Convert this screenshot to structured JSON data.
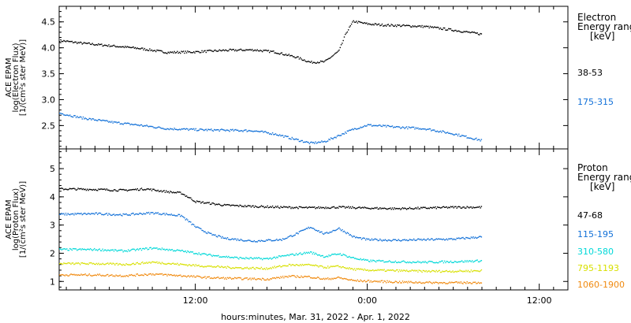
{
  "xlabel": "hours:minutes, Mar. 31, 2022 - Apr. 1, 2022",
  "x_ticks": [
    {
      "label": "12:00",
      "hour": 12
    },
    {
      "label": "0:00",
      "hour": 24
    },
    {
      "label": "12:00",
      "hour": 36
    }
  ],
  "chart_data": [
    {
      "type": "scatter",
      "title": "",
      "ylabel": [
        "ACE EPAM",
        "log(Electron Flux)",
        "[1/(cm²s ster MeV)]"
      ],
      "ylim": [
        2.05,
        4.8
      ],
      "y_ticks": [
        "2.5",
        "3.0",
        "3.5",
        "4.0",
        "4.5"
      ],
      "xlim_hours": [
        2.5,
        38
      ],
      "legend": {
        "title_lines": [
          "Electron",
          "Energy range"
        ],
        "unit": "[keV]"
      },
      "series": [
        {
          "name": "38-53",
          "color": "#000000",
          "points": [
            [
              2.5,
              4.15
            ],
            [
              4.0,
              4.1
            ],
            [
              6.0,
              4.05
            ],
            [
              8.0,
              4.0
            ],
            [
              10.0,
              3.92
            ],
            [
              12.0,
              3.93
            ],
            [
              14.0,
              3.96
            ],
            [
              16.0,
              3.97
            ],
            [
              17.5,
              3.93
            ],
            [
              19.0,
              3.83
            ],
            [
              20.0,
              3.73
            ],
            [
              21.0,
              3.74
            ],
            [
              22.0,
              3.95
            ],
            [
              22.5,
              4.3
            ],
            [
              23.0,
              4.52
            ],
            [
              24.0,
              4.47
            ],
            [
              25.0,
              4.45
            ],
            [
              26.0,
              4.44
            ],
            [
              28.0,
              4.42
            ],
            [
              30.0,
              4.35
            ],
            [
              32.0,
              4.27
            ]
          ]
        },
        {
          "name": "175-315",
          "color": "#1170d8",
          "points": [
            [
              2.5,
              2.75
            ],
            [
              4.0,
              2.66
            ],
            [
              6.0,
              2.58
            ],
            [
              8.0,
              2.52
            ],
            [
              10.0,
              2.45
            ],
            [
              12.0,
              2.43
            ],
            [
              14.0,
              2.42
            ],
            [
              16.0,
              2.41
            ],
            [
              17.5,
              2.35
            ],
            [
              19.0,
              2.24
            ],
            [
              20.0,
              2.17
            ],
            [
              21.0,
              2.2
            ],
            [
              22.0,
              2.32
            ],
            [
              23.0,
              2.44
            ],
            [
              24.0,
              2.52
            ],
            [
              25.0,
              2.5
            ],
            [
              26.0,
              2.48
            ],
            [
              28.0,
              2.45
            ],
            [
              30.0,
              2.35
            ],
            [
              32.0,
              2.22
            ]
          ]
        }
      ]
    },
    {
      "type": "scatter",
      "title": "",
      "ylabel": [
        "ACE EPAM",
        "log(Proton Flux)",
        "[1/(cm²s ster MeV)]"
      ],
      "ylim": [
        0.7,
        5.7
      ],
      "y_ticks": [
        "1",
        "2",
        "3",
        "4",
        "5"
      ],
      "xlim_hours": [
        2.5,
        38
      ],
      "legend": {
        "title_lines": [
          "Proton",
          "Energy range"
        ],
        "unit": "[keV]"
      },
      "series": [
        {
          "name": "47-68",
          "color": "#000000",
          "points": [
            [
              2.5,
              4.3
            ],
            [
              5.0,
              4.28
            ],
            [
              7.0,
              4.25
            ],
            [
              8.5,
              4.3
            ],
            [
              10.0,
              4.2
            ],
            [
              11.0,
              4.15
            ],
            [
              12.0,
              3.85
            ],
            [
              14.0,
              3.72
            ],
            [
              16.0,
              3.68
            ],
            [
              18.0,
              3.65
            ],
            [
              20.0,
              3.63
            ],
            [
              22.0,
              3.65
            ],
            [
              24.0,
              3.62
            ],
            [
              26.0,
              3.6
            ],
            [
              28.0,
              3.62
            ],
            [
              30.0,
              3.65
            ],
            [
              32.0,
              3.65
            ]
          ]
        },
        {
          "name": "115-195",
          "color": "#1170d8",
          "points": [
            [
              2.5,
              3.4
            ],
            [
              5.0,
              3.42
            ],
            [
              7.0,
              3.38
            ],
            [
              9.0,
              3.45
            ],
            [
              11.0,
              3.35
            ],
            [
              12.0,
              2.95
            ],
            [
              13.0,
              2.7
            ],
            [
              14.0,
              2.55
            ],
            [
              16.0,
              2.45
            ],
            [
              18.0,
              2.5
            ],
            [
              19.0,
              2.7
            ],
            [
              20.0,
              2.95
            ],
            [
              21.0,
              2.7
            ],
            [
              22.0,
              2.9
            ],
            [
              23.0,
              2.6
            ],
            [
              24.0,
              2.5
            ],
            [
              26.0,
              2.48
            ],
            [
              28.0,
              2.5
            ],
            [
              30.0,
              2.52
            ],
            [
              32.0,
              2.6
            ]
          ]
        },
        {
          "name": "310-580",
          "color": "#00d8d8",
          "points": [
            [
              2.5,
              2.15
            ],
            [
              5.0,
              2.15
            ],
            [
              7.0,
              2.1
            ],
            [
              9.0,
              2.2
            ],
            [
              11.0,
              2.1
            ],
            [
              13.0,
              1.95
            ],
            [
              15.0,
              1.85
            ],
            [
              17.0,
              1.82
            ],
            [
              18.5,
              1.95
            ],
            [
              20.0,
              2.05
            ],
            [
              21.0,
              1.9
            ],
            [
              22.0,
              2.0
            ],
            [
              23.0,
              1.85
            ],
            [
              24.0,
              1.75
            ],
            [
              26.0,
              1.72
            ],
            [
              28.0,
              1.7
            ],
            [
              30.0,
              1.72
            ],
            [
              32.0,
              1.75
            ]
          ]
        },
        {
          "name": "795-1193",
          "color": "#d8e000",
          "points": [
            [
              2.5,
              1.65
            ],
            [
              5.0,
              1.65
            ],
            [
              7.0,
              1.62
            ],
            [
              9.0,
              1.7
            ],
            [
              11.0,
              1.62
            ],
            [
              13.0,
              1.55
            ],
            [
              15.0,
              1.5
            ],
            [
              17.0,
              1.48
            ],
            [
              18.5,
              1.6
            ],
            [
              20.0,
              1.6
            ],
            [
              21.0,
              1.52
            ],
            [
              22.0,
              1.55
            ],
            [
              23.0,
              1.45
            ],
            [
              24.0,
              1.42
            ],
            [
              26.0,
              1.4
            ],
            [
              28.0,
              1.38
            ],
            [
              30.0,
              1.38
            ],
            [
              32.0,
              1.4
            ]
          ]
        },
        {
          "name": "1060-1900",
          "color": "#f08a10",
          "points": [
            [
              2.5,
              1.25
            ],
            [
              5.0,
              1.25
            ],
            [
              7.0,
              1.22
            ],
            [
              9.0,
              1.28
            ],
            [
              11.0,
              1.22
            ],
            [
              13.0,
              1.15
            ],
            [
              15.0,
              1.12
            ],
            [
              17.0,
              1.1
            ],
            [
              18.5,
              1.2
            ],
            [
              20.0,
              1.18
            ],
            [
              21.0,
              1.1
            ],
            [
              22.0,
              1.15
            ],
            [
              23.0,
              1.05
            ],
            [
              24.0,
              1.03
            ],
            [
              26.0,
              1.0
            ],
            [
              28.0,
              0.98
            ],
            [
              30.0,
              0.97
            ],
            [
              32.0,
              0.98
            ]
          ]
        }
      ]
    }
  ]
}
